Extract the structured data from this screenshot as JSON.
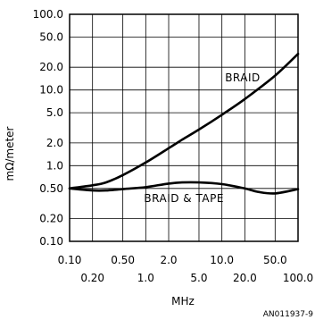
{
  "chart_data": {
    "type": "line",
    "xlabel": "MHz",
    "ylabel": "mΩ/meter",
    "figure_id": "AN011937-9",
    "xscale": "log",
    "yscale": "log",
    "xlim": [
      0.1,
      100
    ],
    "ylim": [
      0.1,
      100
    ],
    "grid": true,
    "x_ticks_top": [
      "0.10",
      "0.50",
      "2.0",
      "10.0",
      "50.0"
    ],
    "x_ticks_bottom": [
      "0.20",
      "1.0",
      "5.0",
      "20.0",
      "100.0"
    ],
    "y_ticks": [
      "100.0",
      "50.0",
      "20.0",
      "10.0",
      "5.0",
      "2.0",
      "1.0",
      "0.50",
      "0.20",
      "0.10"
    ],
    "series": [
      {
        "name": "BRAID",
        "x": [
          0.1,
          0.2,
          0.3,
          0.5,
          1.0,
          2.0,
          3.0,
          5.0,
          10.0,
          20.0,
          50.0,
          100.0
        ],
        "y": [
          0.5,
          0.55,
          0.6,
          0.75,
          1.1,
          1.7,
          2.2,
          3.0,
          4.7,
          7.6,
          15.5,
          30.0
        ]
      },
      {
        "name": "BRAID & TAPE",
        "x": [
          0.1,
          0.2,
          0.3,
          0.5,
          1.0,
          2.0,
          3.0,
          5.0,
          10.0,
          20.0,
          30.0,
          50.0,
          100.0
        ],
        "y": [
          0.5,
          0.47,
          0.47,
          0.49,
          0.52,
          0.58,
          0.6,
          0.6,
          0.57,
          0.5,
          0.45,
          0.43,
          0.49
        ]
      }
    ]
  }
}
